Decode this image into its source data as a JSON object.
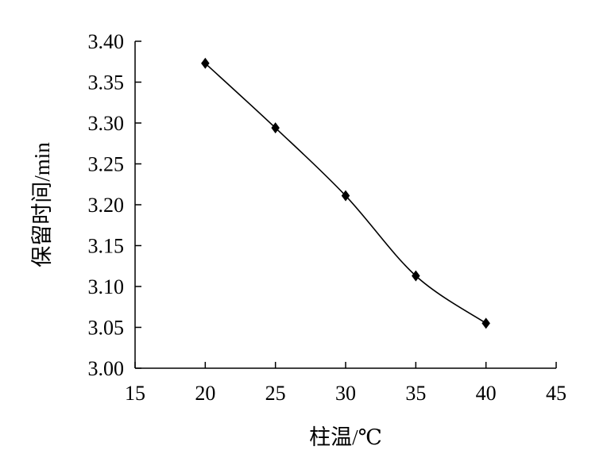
{
  "chart_data": {
    "type": "line",
    "xlabel": "柱温/℃",
    "ylabel": "保留时间/min",
    "xlim": [
      15,
      45
    ],
    "ylim": [
      3.0,
      3.4
    ],
    "x_ticks": [
      15,
      20,
      25,
      30,
      35,
      40,
      45
    ],
    "y_ticks": [
      3.0,
      3.05,
      3.1,
      3.15,
      3.2,
      3.25,
      3.3,
      3.35,
      3.4
    ],
    "x_tick_labels": [
      "15",
      "20",
      "25",
      "30",
      "35",
      "40",
      "45"
    ],
    "y_tick_labels": [
      "3.00",
      "3.05",
      "3.10",
      "3.15",
      "3.20",
      "3.25",
      "3.30",
      "3.35",
      "3.40"
    ],
    "grid": false,
    "legend": "none",
    "series": [
      {
        "x": [
          20,
          25,
          30,
          35,
          40
        ],
        "y": [
          3.373,
          3.294,
          3.211,
          3.113,
          3.055
        ],
        "marker": "diamond",
        "color": "#000000"
      }
    ]
  }
}
